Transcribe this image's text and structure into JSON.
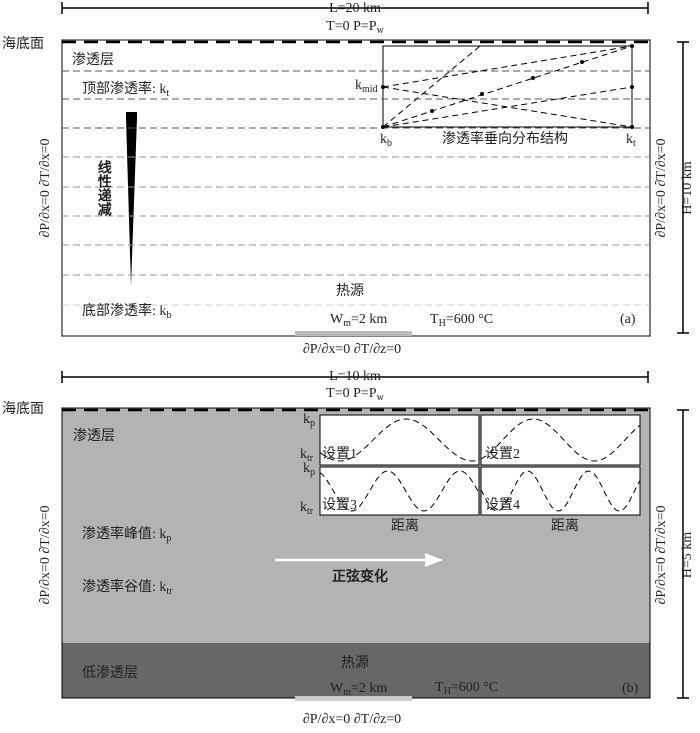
{
  "panel_a": {
    "length": "L=20 km",
    "top_condition": [
      "T=0  P=P",
      "w"
    ],
    "seafloor": "海底面",
    "layer": "渗透层",
    "top_permeability": [
      "顶部渗透率: k",
      "t"
    ],
    "trend": "线性递减",
    "bottom_permeability": [
      "底部渗透率: k",
      "b"
    ],
    "heat_source": "热源",
    "source_width": [
      "W",
      "m",
      "=2 km"
    ],
    "source_temperature": [
      "T",
      "H",
      "=600 °C"
    ],
    "label": "(a)",
    "left_boundary": "∂P/∂x=0  ∂T/∂x=0",
    "right_boundary": "∂P/∂x=0  ∂T/∂x=0",
    "height": "H=10 km",
    "bottom_boundary": "∂P/∂x=0  ∂T/∂z=0",
    "inset": {
      "mid": [
        "k",
        "mid"
      ],
      "bottom": [
        "k",
        "b"
      ],
      "top": [
        "k",
        "t"
      ],
      "title": "渗透率垂向分布结构"
    }
  },
  "panel_b": {
    "length": "L=10 km",
    "top_condition": [
      "T=0  P=P",
      "w"
    ],
    "seafloor": "海底面",
    "layer": "渗透层",
    "peak": [
      "渗透率峰值: k",
      "p"
    ],
    "trough": [
      "渗透率谷值: k",
      "tr"
    ],
    "trend": "正弦变化",
    "low_layer": "低渗透层",
    "heat_source": "热源",
    "source_width": [
      "W",
      "m",
      "=2 km"
    ],
    "source_temperature": [
      "T",
      "H",
      "=600 °C"
    ],
    "label": "(b)",
    "left_boundary": "∂P/∂x=0  ∂T/∂x=0",
    "right_boundary": "∂P/∂x=0  ∂T/∂x=0",
    "height": "H=5 km",
    "bottom_boundary": "∂P/∂x=0  ∂T/∂z=0",
    "inset": {
      "upper_peak": [
        "k",
        "p"
      ],
      "upper_trough": [
        "k",
        "tr"
      ],
      "lower_peak": [
        "k",
        "p"
      ],
      "lower_trough": [
        "k",
        "tr"
      ],
      "settings": [
        "设置1",
        "设置2",
        "设置3",
        "设置4"
      ],
      "distance": [
        "距离",
        "距离"
      ]
    }
  }
}
